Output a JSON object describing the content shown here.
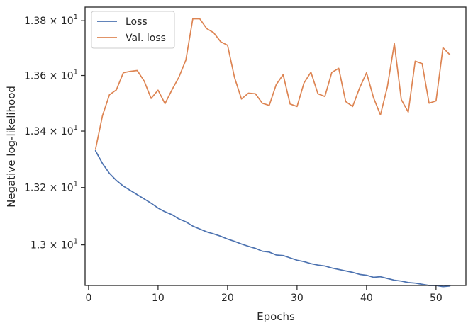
{
  "chart_data": {
    "type": "line",
    "xlabel": "Epochs",
    "ylabel": "Negative log-likelihood",
    "yscale": "log",
    "xlim": [
      -0.5,
      54.3
    ],
    "ylim": [
      12.86,
      13.85
    ],
    "grid": false,
    "legend_placement": "top-left",
    "x_ticks": [
      0,
      10,
      20,
      30,
      40,
      50
    ],
    "x_tick_labels": [
      "0",
      "10",
      "20",
      "30",
      "40",
      "50"
    ],
    "y_ticks": [
      13.0,
      13.2,
      13.4,
      13.6,
      13.8
    ],
    "y_tick_labels": [
      {
        "mantissa": "1.3",
        "base": "10",
        "exp": "1"
      },
      {
        "mantissa": "1.32",
        "base": "10",
        "exp": "1"
      },
      {
        "mantissa": "1.34",
        "base": "10",
        "exp": "1"
      },
      {
        "mantissa": "1.36",
        "base": "10",
        "exp": "1"
      },
      {
        "mantissa": "1.38",
        "base": "10",
        "exp": "1"
      }
    ],
    "x": [
      1,
      2,
      3,
      4,
      5,
      6,
      7,
      8,
      9,
      10,
      11,
      12,
      13,
      14,
      15,
      16,
      17,
      18,
      19,
      20,
      21,
      22,
      23,
      24,
      25,
      26,
      27,
      28,
      29,
      30,
      31,
      32,
      33,
      34,
      35,
      36,
      37,
      38,
      39,
      40,
      41,
      42,
      43,
      44,
      45,
      46,
      47,
      48,
      49,
      50,
      51,
      52
    ],
    "series": [
      {
        "name": "Loss",
        "color": "#4c72b0",
        "values": [
          13.33,
          13.285,
          13.25,
          13.225,
          13.205,
          13.19,
          13.175,
          13.16,
          13.145,
          13.128,
          13.115,
          13.105,
          13.09,
          13.08,
          13.065,
          13.055,
          13.045,
          13.038,
          13.03,
          13.02,
          13.012,
          13.003,
          12.995,
          12.988,
          12.978,
          12.975,
          12.965,
          12.963,
          12.955,
          12.947,
          12.942,
          12.935,
          12.93,
          12.927,
          12.92,
          12.915,
          12.91,
          12.905,
          12.898,
          12.895,
          12.888,
          12.89,
          12.884,
          12.878,
          12.875,
          12.87,
          12.868,
          12.864,
          12.86,
          12.86,
          12.856,
          12.858
        ]
      },
      {
        "name": "Val. loss",
        "color": "#dd8452",
        "values": [
          13.335,
          13.455,
          13.53,
          13.548,
          13.61,
          13.615,
          13.618,
          13.58,
          13.517,
          13.547,
          13.498,
          13.548,
          13.594,
          13.656,
          13.807,
          13.807,
          13.771,
          13.756,
          13.723,
          13.71,
          13.593,
          13.515,
          13.536,
          13.534,
          13.5,
          13.492,
          13.567,
          13.603,
          13.497,
          13.488,
          13.573,
          13.612,
          13.534,
          13.524,
          13.611,
          13.626,
          13.506,
          13.488,
          13.555,
          13.61,
          13.52,
          13.458,
          13.559,
          13.716,
          13.513,
          13.468,
          13.652,
          13.643,
          13.5,
          13.508,
          13.701,
          13.675
        ]
      }
    ]
  }
}
